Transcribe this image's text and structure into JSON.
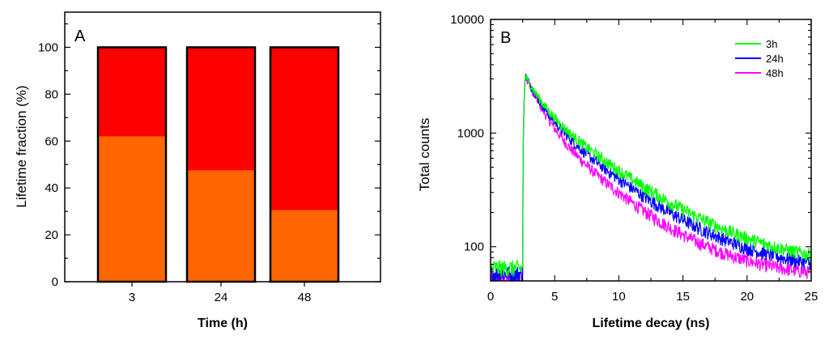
{
  "chart_data": [
    {
      "type": "bar",
      "panel": "A",
      "stacked": true,
      "categories": [
        "3",
        "24",
        "48"
      ],
      "series": [
        {
          "values": [
            62,
            47.5,
            30.5
          ],
          "color": "#ff6600"
        },
        {
          "values": [
            38,
            52.5,
            69.5
          ],
          "color": "#ff0000"
        }
      ],
      "xlabel": "Time (h)",
      "ylabel": "Lifetime fraction (%)",
      "ylim": [
        0,
        115
      ],
      "yticks": [
        0,
        20,
        40,
        60,
        80,
        100
      ],
      "grid": false,
      "legend": "none"
    },
    {
      "type": "line",
      "panel": "B",
      "xlabel": "Lifetime decay (ns)",
      "ylabel": "Total counts",
      "xlim": [
        0,
        25
      ],
      "ylim": [
        50,
        10000
      ],
      "yscale": "log",
      "xticks": [
        0,
        5,
        10,
        15,
        20,
        25
      ],
      "yticks": [
        100,
        1000,
        10000
      ],
      "ytick_labels": [
        "100",
        "1000",
        "10000"
      ],
      "grid": false,
      "legend": "top-right",
      "series": [
        {
          "name": "3h",
          "color": "#00ff00",
          "baseline": 65,
          "peak_x": 2.7,
          "peak": 3200,
          "tail_at_25ns": 70
        },
        {
          "name": "24h",
          "color": "#0000ff",
          "baseline": 58,
          "peak_x": 2.7,
          "peak": 3200,
          "tail_at_25ns": 62
        },
        {
          "name": "48h",
          "color": "#ff00ff",
          "baseline": 52,
          "peak_x": 2.7,
          "peak": 3200,
          "tail_at_25ns": 55
        }
      ]
    }
  ]
}
